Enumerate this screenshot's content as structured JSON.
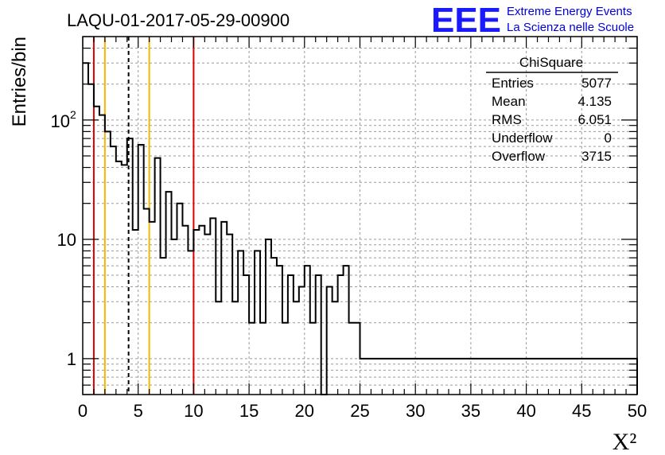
{
  "chart_data": {
    "type": "bar",
    "title": "LAQU-01-2017-05-29-00900",
    "xlabel": "X²",
    "ylabel": "Entries/bin",
    "xlim": [
      0,
      50
    ],
    "ylim": [
      0.5,
      500
    ],
    "yscale": "log",
    "grid": true,
    "bin_width": 0.5,
    "x_ticks": [
      "0",
      "5",
      "10",
      "15",
      "20",
      "25",
      "30",
      "35",
      "40",
      "45",
      "50"
    ],
    "y_tick_labels": [
      {
        "value": 1,
        "label": "1"
      },
      {
        "value": 10,
        "label": "10"
      },
      {
        "value": 100,
        "label": "10",
        "exponent": "2"
      }
    ],
    "values": [
      300,
      200,
      130,
      110,
      80,
      60,
      45,
      42,
      70,
      12,
      62,
      18,
      14,
      48,
      7,
      25,
      10,
      20,
      13,
      8,
      12,
      13,
      11,
      15,
      3,
      14,
      11,
      3,
      8,
      5,
      2,
      8,
      2,
      10,
      7,
      6,
      2,
      5,
      3,
      4,
      6,
      2,
      5,
      0,
      4,
      3,
      5,
      6,
      2,
      2,
      1,
      1,
      1,
      1,
      1,
      1,
      1,
      1,
      1,
      1,
      1,
      1,
      1,
      1,
      1,
      1,
      1,
      1,
      1,
      1,
      1,
      1,
      1,
      1,
      1,
      1,
      1,
      1,
      1,
      1,
      1,
      1,
      1,
      1,
      1,
      1,
      1,
      1,
      1,
      1,
      1,
      1,
      1,
      1,
      1,
      1,
      1,
      1,
      1,
      1
    ],
    "vertical_lines": [
      {
        "x": 1,
        "color": "#dd0000",
        "style": "solid"
      },
      {
        "x": 2,
        "color": "#f5b800",
        "style": "solid"
      },
      {
        "x": 4.135,
        "color": "#000000",
        "style": "dashed"
      },
      {
        "x": 6,
        "color": "#f5b800",
        "style": "solid"
      },
      {
        "x": 10,
        "color": "#dd0000",
        "style": "solid"
      }
    ],
    "stats_box": {
      "title": "ChiSquare",
      "rows": [
        {
          "label": "Entries",
          "value": "5077"
        },
        {
          "label": "Mean",
          "value": "4.135"
        },
        {
          "label": "RMS",
          "value": "6.051"
        },
        {
          "label": "Underflow",
          "value": "0"
        },
        {
          "label": "Overflow",
          "value": "3715"
        }
      ]
    }
  },
  "logo": {
    "text": "EEE",
    "line1": "Extreme Energy Events",
    "line2": "La Scienza nelle Scuole",
    "color": "#1a1aff"
  }
}
